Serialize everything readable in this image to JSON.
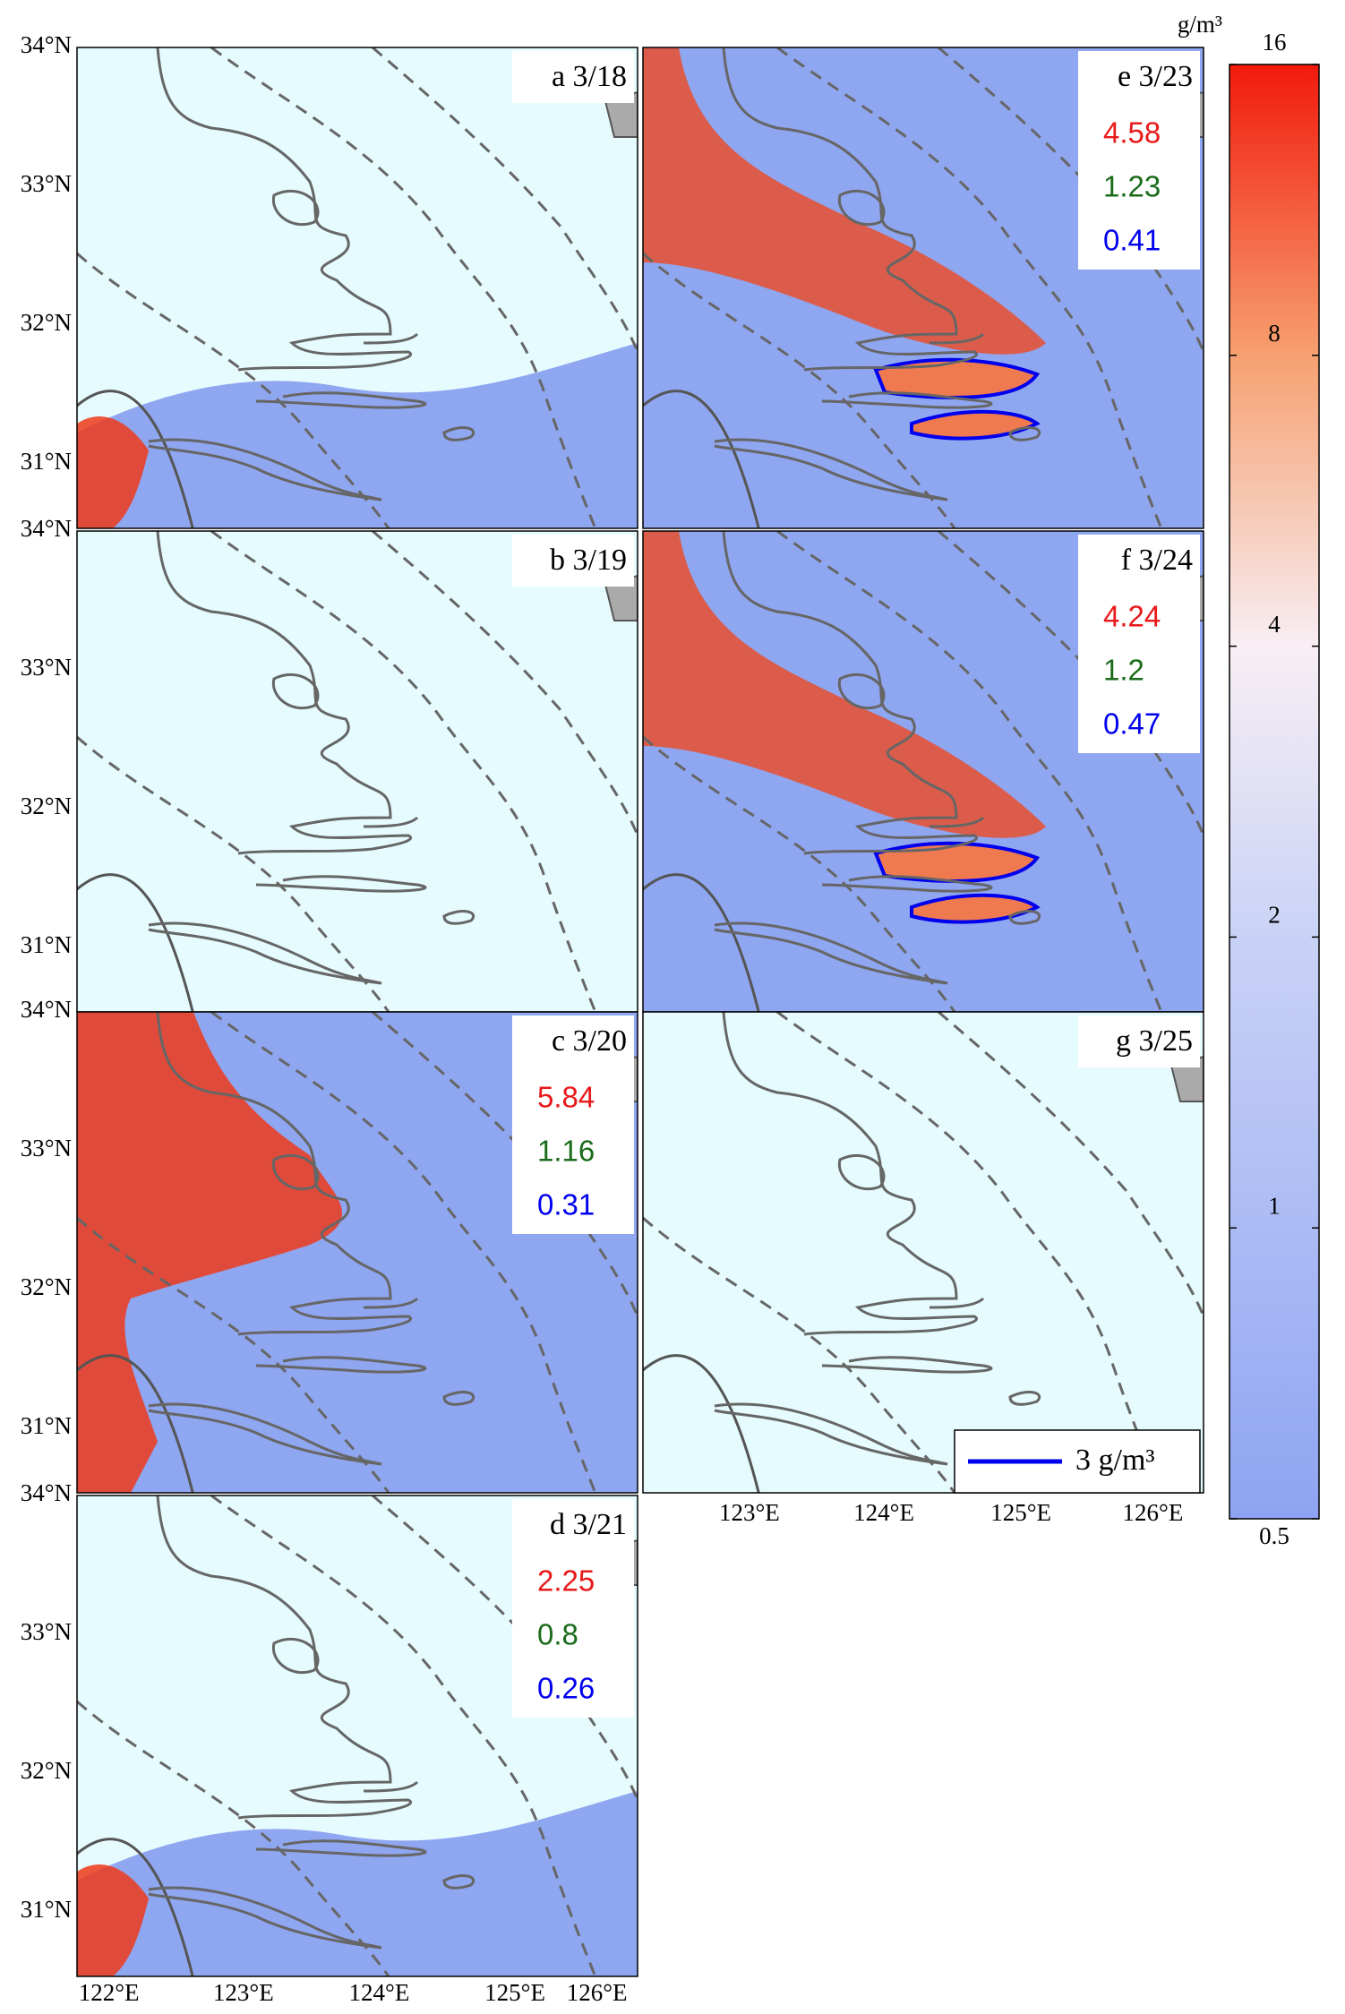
{
  "panels": [
    {
      "label": "a 3/18"
    },
    {
      "label": "b 3/19"
    },
    {
      "label": "c 3/20",
      "stats": [
        5.84,
        1.16,
        0.31
      ]
    },
    {
      "label": "d 3/21",
      "stats": [
        2.25,
        0.8,
        0.26
      ]
    },
    {
      "label": "e 3/23",
      "stats": [
        4.58,
        1.23,
        0.41
      ]
    },
    {
      "label": "f 3/24",
      "stats": [
        4.24,
        1.2,
        0.47
      ]
    },
    {
      "label": "g 3/25"
    }
  ],
  "lat_ticks": [
    "34°N",
    "33°N",
    "32°N",
    "31°N"
  ],
  "lon_ticks_left": [
    "122°E",
    "123°E",
    "124°E",
    "125°E",
    "126°E"
  ],
  "lon_ticks_right": [
    "123°E",
    "124°E",
    "125°E",
    "126°E"
  ],
  "colorbar": {
    "unit": "g/m³",
    "ticks": [
      16,
      8,
      4,
      2,
      1,
      0.5
    ],
    "range": [
      0.5,
      16
    ]
  },
  "legend": "3 g/m³"
}
